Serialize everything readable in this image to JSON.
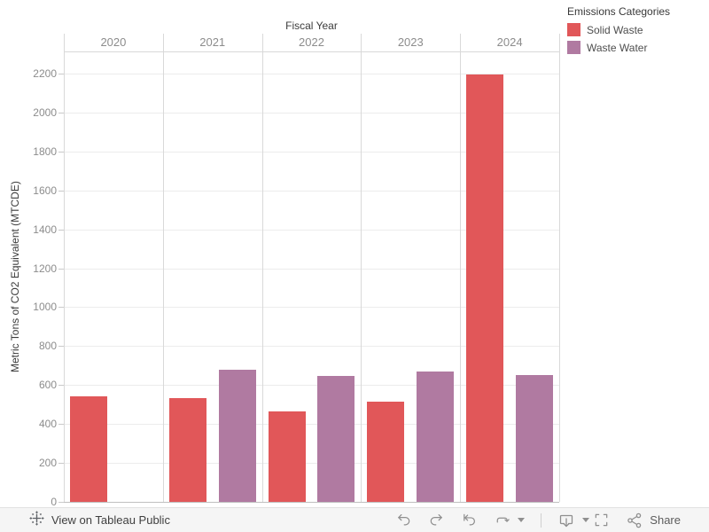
{
  "chart_data": {
    "type": "bar",
    "title": "Fiscal Year",
    "xlabel": "Fiscal Year",
    "ylabel": "Metric Tons of CO2 Equivalent (MTCDE)",
    "legend_title": "Emissions Categories",
    "legend_position": "top-right",
    "categories": [
      "2020",
      "2021",
      "2022",
      "2023",
      "2024"
    ],
    "series": [
      {
        "name": "Solid Waste",
        "color": "#e15759",
        "values": [
          540,
          535,
          465,
          515,
          2195
        ]
      },
      {
        "name": "Waste Water",
        "color": "#b07aa1",
        "values": [
          null,
          680,
          645,
          670,
          650
        ]
      }
    ],
    "ylim": [
      0,
      2314
    ],
    "yticks": [
      0,
      200,
      400,
      600,
      800,
      1000,
      1200,
      1400,
      1600,
      1800,
      2000,
      2200
    ],
    "grid": true
  },
  "legend": {
    "title": "Emissions Categories"
  },
  "toolbar": {
    "view_label": "View on Tableau Public",
    "share_label": "Share",
    "icons": [
      "tableau-logo",
      "undo",
      "redo",
      "revert",
      "refresh",
      "refresh-caret",
      "separator",
      "download",
      "download-caret",
      "fullscreen",
      "share"
    ]
  }
}
